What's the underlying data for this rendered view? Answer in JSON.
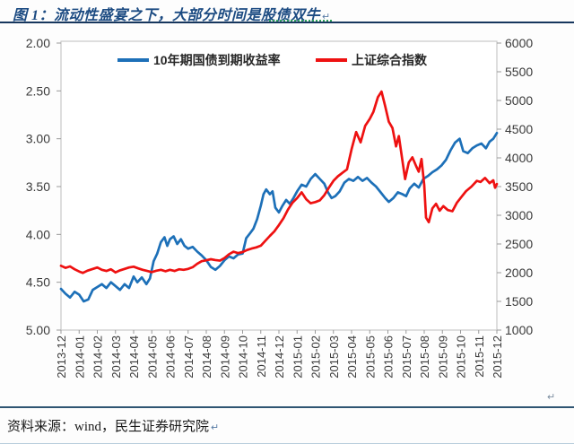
{
  "page": {
    "title": "图 1：流动性盛宴之下，大部分时间是股债双牛",
    "footer": "资料来源：wind，民生证券研究院",
    "paragraph_mark": "↵"
  },
  "colors": {
    "title": "#1c4b82",
    "rule": "#17375e",
    "bond_line": "#1d70b8",
    "index_line": "#ee1111",
    "axis_text": "#3a3a3a",
    "frame": "#c9c9c9",
    "tick": "#9a9a9a",
    "legend_text": "#262626"
  },
  "chart_data": {
    "type": "line",
    "title": "图 1：流动性盛宴之下，大部分时间是股债双牛",
    "x_unit": "months since 2013-12",
    "grid": false,
    "legend_position": "top",
    "x_tick_labels": [
      "2013-12",
      "2014-01",
      "2014-02",
      "2014-03",
      "2014-04",
      "2014-05",
      "2014-06",
      "2014-07",
      "2014-08",
      "2014-09",
      "2014-10",
      "2014-11",
      "2014-12",
      "2015-01",
      "2015-02",
      "2015-03",
      "2015-04",
      "2015-05",
      "2015-06",
      "2015-07",
      "2015-08",
      "2015-09",
      "2015-10",
      "2015-11",
      "2015-12"
    ],
    "left_axis": {
      "min": 2.0,
      "max": 5.0,
      "inverted": true,
      "tick_labels": [
        "2.00",
        "2.50",
        "3.00",
        "3.50",
        "4.00",
        "4.50",
        "5.00"
      ]
    },
    "right_axis": {
      "min": 1000,
      "max": 6000,
      "tick_labels": [
        "6000",
        "5500",
        "5000",
        "4500",
        "4000",
        "3500",
        "3000",
        "2500",
        "2000",
        "1500",
        "1000"
      ]
    },
    "series": [
      {
        "name": "10年期国债到期收益率",
        "axis": "left",
        "color": "#1d70b8",
        "points": [
          [
            0,
            4.57
          ],
          [
            0.25,
            4.62
          ],
          [
            0.5,
            4.66
          ],
          [
            0.75,
            4.6
          ],
          [
            1,
            4.63
          ],
          [
            1.25,
            4.7
          ],
          [
            1.5,
            4.68
          ],
          [
            1.75,
            4.58
          ],
          [
            2,
            4.55
          ],
          [
            2.25,
            4.52
          ],
          [
            2.5,
            4.56
          ],
          [
            2.75,
            4.5
          ],
          [
            3,
            4.54
          ],
          [
            3.25,
            4.58
          ],
          [
            3.5,
            4.52
          ],
          [
            3.75,
            4.56
          ],
          [
            4,
            4.44
          ],
          [
            4.2,
            4.5
          ],
          [
            4.45,
            4.45
          ],
          [
            4.7,
            4.52
          ],
          [
            4.9,
            4.46
          ],
          [
            5.1,
            4.28
          ],
          [
            5.3,
            4.2
          ],
          [
            5.5,
            4.08
          ],
          [
            5.7,
            4.03
          ],
          [
            5.85,
            4.12
          ],
          [
            6,
            4.05
          ],
          [
            6.2,
            4.02
          ],
          [
            6.4,
            4.1
          ],
          [
            6.6,
            4.05
          ],
          [
            6.8,
            4.12
          ],
          [
            7,
            4.15
          ],
          [
            7.25,
            4.13
          ],
          [
            7.5,
            4.18
          ],
          [
            7.75,
            4.22
          ],
          [
            8,
            4.27
          ],
          [
            8.25,
            4.34
          ],
          [
            8.5,
            4.37
          ],
          [
            8.75,
            4.33
          ],
          [
            9,
            4.27
          ],
          [
            9.25,
            4.23
          ],
          [
            9.5,
            4.25
          ],
          [
            9.75,
            4.21
          ],
          [
            10,
            4.2
          ],
          [
            10.2,
            4.04
          ],
          [
            10.4,
            3.99
          ],
          [
            10.6,
            3.94
          ],
          [
            10.8,
            3.84
          ],
          [
            11,
            3.7
          ],
          [
            11.15,
            3.58
          ],
          [
            11.3,
            3.53
          ],
          [
            11.5,
            3.58
          ],
          [
            11.65,
            3.55
          ],
          [
            11.8,
            3.72
          ],
          [
            12,
            3.77
          ],
          [
            12.2,
            3.7
          ],
          [
            12.4,
            3.64
          ],
          [
            12.6,
            3.68
          ],
          [
            12.8,
            3.62
          ],
          [
            13,
            3.55
          ],
          [
            13.25,
            3.48
          ],
          [
            13.5,
            3.5
          ],
          [
            13.75,
            3.42
          ],
          [
            14,
            3.37
          ],
          [
            14.25,
            3.42
          ],
          [
            14.5,
            3.47
          ],
          [
            14.7,
            3.56
          ],
          [
            14.9,
            3.62
          ],
          [
            15.1,
            3.6
          ],
          [
            15.35,
            3.55
          ],
          [
            15.6,
            3.46
          ],
          [
            15.85,
            3.42
          ],
          [
            16.1,
            3.44
          ],
          [
            16.35,
            3.4
          ],
          [
            16.6,
            3.44
          ],
          [
            16.85,
            3.41
          ],
          [
            17.1,
            3.46
          ],
          [
            17.35,
            3.5
          ],
          [
            17.6,
            3.56
          ],
          [
            17.85,
            3.62
          ],
          [
            18.05,
            3.66
          ],
          [
            18.3,
            3.62
          ],
          [
            18.55,
            3.56
          ],
          [
            18.8,
            3.58
          ],
          [
            19,
            3.6
          ],
          [
            19.2,
            3.52
          ],
          [
            19.45,
            3.47
          ],
          [
            19.7,
            3.51
          ],
          [
            19.95,
            3.42
          ],
          [
            20.2,
            3.39
          ],
          [
            20.45,
            3.35
          ],
          [
            20.7,
            3.32
          ],
          [
            20.95,
            3.28
          ],
          [
            21.2,
            3.22
          ],
          [
            21.45,
            3.12
          ],
          [
            21.7,
            3.04
          ],
          [
            21.95,
            3.0
          ],
          [
            22.15,
            3.13
          ],
          [
            22.4,
            3.15
          ],
          [
            22.65,
            3.1
          ],
          [
            22.9,
            3.07
          ],
          [
            23.15,
            3.05
          ],
          [
            23.4,
            3.1
          ],
          [
            23.6,
            3.03
          ],
          [
            23.8,
            3.0
          ],
          [
            24,
            2.94
          ]
        ]
      },
      {
        "name": "上证综合指数",
        "axis": "right",
        "color": "#ee1111",
        "points": [
          [
            0,
            2120
          ],
          [
            0.25,
            2085
          ],
          [
            0.5,
            2110
          ],
          [
            0.75,
            2060
          ],
          [
            1,
            2020
          ],
          [
            1.2,
            1995
          ],
          [
            1.45,
            2035
          ],
          [
            1.7,
            2060
          ],
          [
            2,
            2090
          ],
          [
            2.25,
            2050
          ],
          [
            2.5,
            2030
          ],
          [
            2.75,
            2060
          ],
          [
            3,
            2005
          ],
          [
            3.25,
            2040
          ],
          [
            3.5,
            2065
          ],
          [
            3.75,
            2090
          ],
          [
            4,
            2105
          ],
          [
            4.25,
            2075
          ],
          [
            4.5,
            2050
          ],
          [
            4.75,
            2030
          ],
          [
            5,
            2010
          ],
          [
            5.25,
            2035
          ],
          [
            5.5,
            2050
          ],
          [
            5.75,
            2025
          ],
          [
            6,
            2050
          ],
          [
            6.25,
            2030
          ],
          [
            6.5,
            2060
          ],
          [
            6.75,
            2050
          ],
          [
            7,
            2065
          ],
          [
            7.25,
            2095
          ],
          [
            7.5,
            2155
          ],
          [
            7.75,
            2200
          ],
          [
            8,
            2215
          ],
          [
            8.25,
            2235
          ],
          [
            8.5,
            2220
          ],
          [
            8.75,
            2210
          ],
          [
            9,
            2255
          ],
          [
            9.25,
            2320
          ],
          [
            9.5,
            2365
          ],
          [
            9.75,
            2340
          ],
          [
            10,
            2360
          ],
          [
            10.25,
            2395
          ],
          [
            10.5,
            2420
          ],
          [
            10.75,
            2440
          ],
          [
            11,
            2470
          ],
          [
            11.25,
            2555
          ],
          [
            11.5,
            2640
          ],
          [
            11.75,
            2720
          ],
          [
            12,
            2830
          ],
          [
            12.25,
            2950
          ],
          [
            12.5,
            3100
          ],
          [
            12.75,
            3220
          ],
          [
            13,
            3300
          ],
          [
            13.25,
            3400
          ],
          [
            13.5,
            3280
          ],
          [
            13.75,
            3210
          ],
          [
            14,
            3230
          ],
          [
            14.25,
            3260
          ],
          [
            14.5,
            3350
          ],
          [
            14.75,
            3480
          ],
          [
            15,
            3600
          ],
          [
            15.25,
            3680
          ],
          [
            15.5,
            3740
          ],
          [
            15.75,
            3800
          ],
          [
            16,
            4150
          ],
          [
            16.25,
            4450
          ],
          [
            16.5,
            4270
          ],
          [
            16.75,
            4560
          ],
          [
            17,
            4680
          ],
          [
            17.2,
            4800
          ],
          [
            17.45,
            5060
          ],
          [
            17.65,
            5155
          ],
          [
            17.85,
            4900
          ],
          [
            18.05,
            4630
          ],
          [
            18.25,
            4520
          ],
          [
            18.45,
            4200
          ],
          [
            18.6,
            4380
          ],
          [
            18.8,
            3950
          ],
          [
            18.95,
            3630
          ],
          [
            19.15,
            3920
          ],
          [
            19.35,
            4010
          ],
          [
            19.55,
            3860
          ],
          [
            19.7,
            3760
          ],
          [
            19.85,
            3980
          ],
          [
            20,
            3530
          ],
          [
            20.1,
            2960
          ],
          [
            20.25,
            2880
          ],
          [
            20.45,
            3120
          ],
          [
            20.65,
            3200
          ],
          [
            20.85,
            3080
          ],
          [
            21.05,
            3160
          ],
          [
            21.3,
            3090
          ],
          [
            21.55,
            3070
          ],
          [
            21.8,
            3220
          ],
          [
            22,
            3300
          ],
          [
            22.3,
            3420
          ],
          [
            22.6,
            3500
          ],
          [
            22.9,
            3600
          ],
          [
            23.1,
            3580
          ],
          [
            23.35,
            3650
          ],
          [
            23.6,
            3560
          ],
          [
            23.8,
            3610
          ],
          [
            23.9,
            3480
          ],
          [
            24,
            3545
          ]
        ]
      }
    ]
  }
}
